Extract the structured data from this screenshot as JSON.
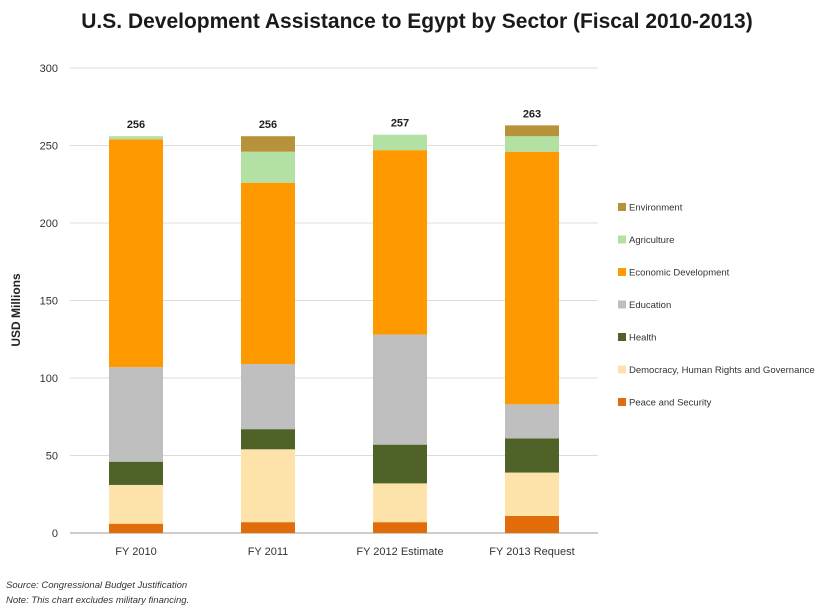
{
  "chart_data": {
    "type": "bar",
    "stacked": true,
    "title": "U.S. Development Assistance to Egypt by Sector (Fiscal 2010-2013)",
    "xlabel": "",
    "ylabel": "USD Millions",
    "ylim": [
      0,
      300
    ],
    "yticks": [
      0,
      50,
      100,
      150,
      200,
      250,
      300
    ],
    "grid": true,
    "legend_position": "right",
    "categories": [
      "FY 2010",
      "FY 2011",
      "FY 2012 Estimate",
      "FY 2013 Request"
    ],
    "totals": [
      "256",
      "256",
      "257",
      "263"
    ],
    "series": [
      {
        "name": "Peace and Security",
        "color": "#e36c0a",
        "values": [
          6,
          7,
          7,
          11
        ]
      },
      {
        "name": "Democracy, Human Rights and Governance",
        "color": "#fde3a9",
        "values": [
          25,
          47,
          25,
          28
        ]
      },
      {
        "name": "Health",
        "color": "#4f6228",
        "values": [
          15,
          13,
          25,
          22
        ]
      },
      {
        "name": "Education",
        "color": "#bfbfbf",
        "values": [
          61,
          42,
          71,
          22
        ]
      },
      {
        "name": "Economic Development",
        "color": "#ff9900",
        "values": [
          147,
          117,
          119,
          163
        ]
      },
      {
        "name": "Agriculture",
        "color": "#b3e0a3",
        "values": [
          2,
          20,
          10,
          10
        ]
      },
      {
        "name": "Environment",
        "color": "#b8923a",
        "values": [
          0,
          10,
          0,
          7
        ]
      }
    ],
    "legend_order": [
      "Environment",
      "Agriculture",
      "Economic Development",
      "Education",
      "Health",
      "Democracy, Human Rights and Governance",
      "Peace and Security"
    ]
  },
  "notes": {
    "source": "Source: Congressional Budget Justification",
    "exclusion": "Note: This chart excludes military financing."
  },
  "colors": {
    "gridline": "#dcdcdc",
    "axis": "#999999"
  }
}
